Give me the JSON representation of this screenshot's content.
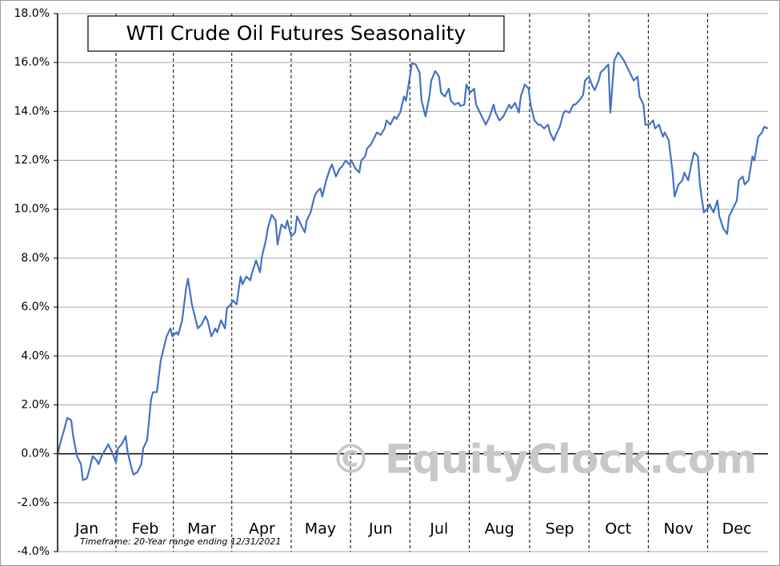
{
  "chart_data": {
    "type": "line",
    "title": "WTI Crude Oil Futures Seasonality",
    "annotation": "Timeframe: 20-Year range ending 12/31/2021",
    "watermark": "© EquityClock.com",
    "color": "#4472c4",
    "xlim": [
      0,
      365
    ],
    "xticks": [
      {
        "value": 15,
        "label": "Jan"
      },
      {
        "value": 45,
        "label": "Feb"
      },
      {
        "value": 74,
        "label": "Mar"
      },
      {
        "value": 105,
        "label": "Apr"
      },
      {
        "value": 135,
        "label": "May"
      },
      {
        "value": 166,
        "label": "Jun"
      },
      {
        "value": 196,
        "label": "Jul"
      },
      {
        "value": 227,
        "label": "Aug"
      },
      {
        "value": 258,
        "label": "Sep"
      },
      {
        "value": 288,
        "label": "Oct"
      },
      {
        "value": 319,
        "label": "Nov"
      },
      {
        "value": 349,
        "label": "Dec"
      }
    ],
    "ylim": [
      -4,
      18
    ],
    "yticks": [
      {
        "value": -4,
        "label": "-4.0%"
      },
      {
        "value": -2,
        "label": "-2.0%"
      },
      {
        "value": 0,
        "label": "0.0%"
      },
      {
        "value": 2,
        "label": "2.0%"
      },
      {
        "value": 4,
        "label": "4.0%"
      },
      {
        "value": 6,
        "label": "6.0%"
      },
      {
        "value": 8,
        "label": "8.0%"
      },
      {
        "value": 10,
        "label": "10.0%"
      },
      {
        "value": 12,
        "label": "12.0%"
      },
      {
        "value": 14,
        "label": "14.0%"
      },
      {
        "value": 16,
        "label": "16.0%"
      },
      {
        "value": 18,
        "label": "18.0%"
      }
    ],
    "grid": true,
    "x": [
      0,
      2,
      3,
      5,
      7,
      8,
      10,
      12,
      13,
      15,
      16,
      18,
      20,
      21,
      23,
      25,
      26,
      28,
      30,
      31,
      33,
      35,
      36,
      38,
      39,
      41,
      43,
      44,
      46,
      48,
      49,
      51,
      53,
      54,
      56,
      58,
      59,
      61,
      62,
      64,
      66,
      67,
      69,
      71,
      72,
      74,
      76,
      77,
      79,
      81,
      82,
      84,
      86,
      87,
      89,
      90,
      92,
      94,
      95,
      97,
      99,
      100,
      102,
      104,
      105,
      107,
      108,
      110,
      112,
      113,
      115,
      117,
      118,
      120,
      122,
      123,
      125,
      127,
      128,
      130,
      132,
      133,
      135,
      136,
      138,
      140,
      141,
      143,
      145,
      146,
      148,
      150,
      151,
      153,
      155,
      156,
      158,
      159,
      161,
      163,
      164,
      166,
      168,
      169,
      171,
      173,
      174,
      176,
      178,
      179,
      181,
      182,
      184,
      186,
      187,
      189,
      191,
      192,
      194,
      196,
      197,
      199,
      201,
      202,
      204,
      206,
      207,
      209,
      210,
      212,
      214,
      215,
      217,
      219,
      220,
      222,
      224,
      225,
      227,
      229,
      230,
      232,
      233,
      235,
      237,
      238,
      240,
      242,
      243,
      245,
      247,
      248,
      250,
      252,
      253,
      255,
      256,
      258,
      260,
      261,
      263,
      265,
      266,
      268,
      270,
      271,
      273,
      275,
      276,
      278,
      279,
      281,
      283,
      284,
      286,
      288,
      289,
      291,
      293,
      294,
      296,
      298,
      299,
      301,
      302,
      304,
      306,
      307,
      309,
      311,
      312,
      314,
      316,
      317,
      319,
      321,
      322,
      324,
      326,
      327,
      329,
      330,
      332,
      334,
      335,
      337,
      339,
      340,
      342,
      344,
      345,
      347,
      349,
      350,
      352,
      353,
      355,
      357,
      358,
      360,
      362,
      363,
      365
    ],
    "values": [
      0,
      0.62,
      0.88,
      1.47,
      1.37,
      0.72,
      -0.1,
      -0.42,
      -1.08,
      -1.01,
      -0.75,
      -0.1,
      -0.26,
      -0.42,
      -0.03,
      0.23,
      0.39,
      0.07,
      -0.36,
      0.23,
      0.39,
      0.72,
      0.07,
      -0.59,
      -0.85,
      -0.75,
      -0.42,
      0.23,
      0.56,
      2.22,
      2.52,
      2.52,
      3.82,
      4.15,
      4.8,
      5.13,
      4.8,
      4.97,
      4.87,
      5.46,
      6.76,
      7.16,
      6.11,
      5.46,
      5.13,
      5.29,
      5.62,
      5.46,
      4.8,
      5.13,
      4.97,
      5.46,
      5.13,
      5.95,
      6.11,
      6.27,
      6.11,
      7.25,
      6.93,
      7.25,
      7.09,
      7.42,
      7.91,
      7.42,
      8.07,
      8.73,
      9.22,
      9.77,
      9.54,
      8.56,
      9.38,
      9.22,
      9.54,
      8.89,
      9.05,
      9.71,
      9.38,
      9.05,
      9.54,
      9.87,
      10.52,
      10.69,
      10.85,
      10.52,
      11.18,
      11.67,
      11.83,
      11.34,
      11.67,
      11.73,
      11.99,
      11.83,
      11.99,
      11.67,
      11.5,
      11.99,
      12.16,
      12.48,
      12.65,
      12.97,
      13.14,
      13.04,
      13.3,
      13.63,
      13.46,
      13.79,
      13.69,
      13.95,
      14.61,
      14.44,
      15.42,
      15.98,
      15.92,
      15.59,
      14.44,
      13.79,
      14.61,
      15.26,
      15.65,
      15.42,
      14.77,
      14.61,
      14.93,
      14.44,
      14.28,
      14.35,
      14.22,
      14.28,
      15.1,
      14.77,
      14.93,
      14.28,
      13.95,
      13.63,
      13.46,
      13.79,
      14.28,
      13.95,
      13.63,
      13.79,
      13.95,
      14.28,
      14.12,
      14.35,
      13.95,
      14.61,
      15.1,
      14.93,
      14.28,
      13.63,
      13.46,
      13.46,
      13.3,
      13.46,
      13.14,
      12.81,
      13.04,
      13.37,
      13.95,
      14.02,
      13.95,
      14.28,
      14.28,
      14.44,
      14.67,
      15.26,
      15.42,
      15,
      14.87,
      15.26,
      15.59,
      15.75,
      15.92,
      13.95,
      16.08,
      16.41,
      16.31,
      16.08,
      15.75,
      15.59,
      15.26,
      15.42,
      14.61,
      14.28,
      13.46,
      13.46,
      13.63,
      13.3,
      13.46,
      12.97,
      13.14,
      12.81,
      11.5,
      10.52,
      11.01,
      11.18,
      11.5,
      11.18,
      11.99,
      12.32,
      12.16,
      11.01,
      9.87,
      10.03,
      10.2,
      9.87,
      10.36,
      9.71,
      9.22,
      8.99,
      9.71,
      10.03,
      10.36,
      11.18,
      11.34,
      11.01,
      11.18,
      12.16,
      11.99,
      12.97,
      13.14,
      13.37,
      13.3
    ]
  }
}
